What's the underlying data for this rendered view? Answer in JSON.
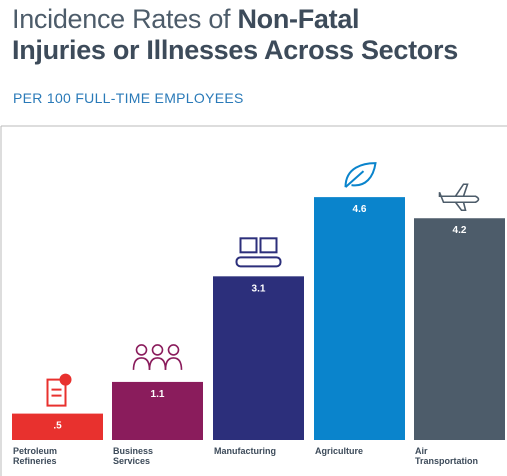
{
  "chart_data": {
    "type": "bar",
    "title": [
      "Incidence Rates of",
      "Non-Fatal",
      "Injuries or Illnesses Across Sectors"
    ],
    "subtitle": "PER 100 FULL-TIME EMPLOYEES",
    "categories": [
      "Petroleum Refineries",
      "Business Services",
      "Manufacturing",
      "Agriculture",
      "Air Transportation"
    ],
    "values": [
      0.5,
      1.1,
      3.1,
      4.6,
      4.2
    ],
    "value_labels": [
      ".5",
      "1.1",
      "3.1",
      "4.6",
      "4.2"
    ],
    "colors": [
      "#e8312e",
      "#8a1c5c",
      "#2c2f7b",
      "#0a84cc",
      "#4d5c6a"
    ],
    "ylim": [
      0,
      5
    ]
  }
}
